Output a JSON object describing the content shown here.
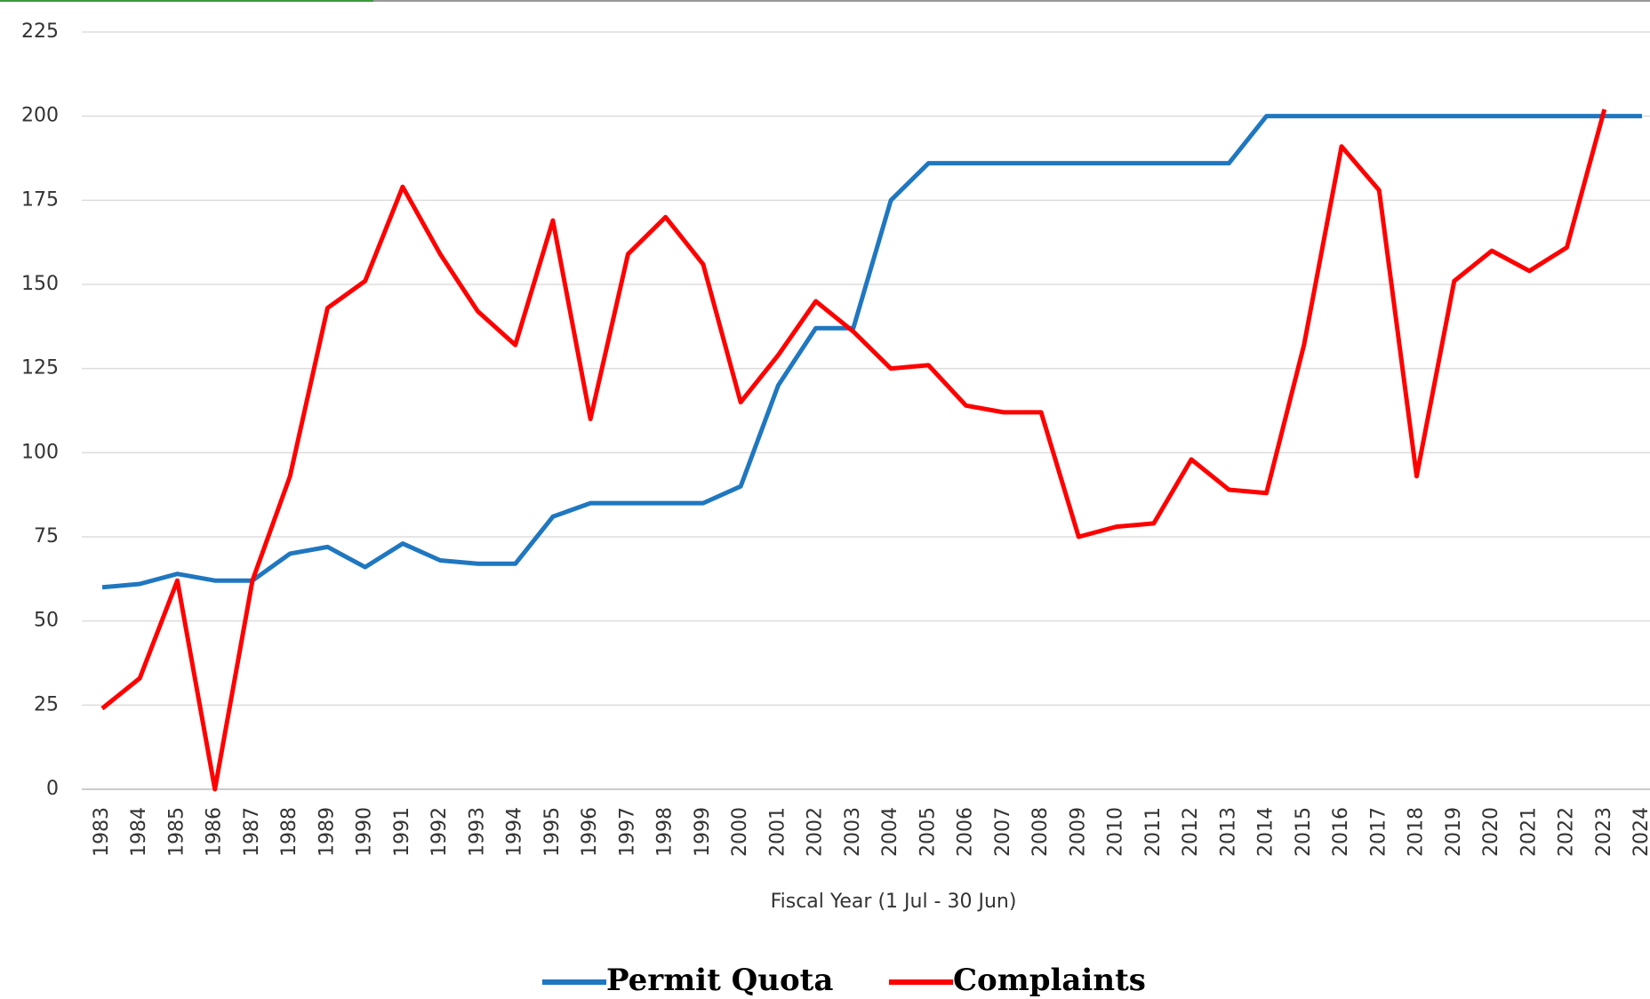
{
  "chart_data": {
    "type": "line",
    "x_label": "Fiscal Year (1 Jul - 30 Jun)",
    "categories": [
      "1983",
      "1984",
      "1985",
      "1986",
      "1987",
      "1988",
      "1989",
      "1990",
      "1991",
      "1992",
      "1993",
      "1994",
      "1995",
      "1996",
      "1997",
      "1998",
      "1999",
      "2000",
      "2001",
      "2002",
      "2003",
      "2004",
      "2005",
      "2006",
      "2007",
      "2008",
      "2009",
      "2010",
      "2011",
      "2012",
      "2013",
      "2014",
      "2015",
      "2016",
      "2017",
      "2018",
      "2019",
      "2020",
      "2021",
      "2022",
      "2023",
      "2024"
    ],
    "series": [
      {
        "name": "Permit Quota",
        "color": "#1f77c0",
        "values": [
          60,
          61,
          64,
          62,
          62,
          70,
          72,
          66,
          73,
          68,
          67,
          67,
          81,
          85,
          85,
          85,
          85,
          90,
          120,
          137,
          137,
          175,
          186,
          186,
          186,
          186,
          186,
          186,
          186,
          186,
          186,
          200,
          200,
          200,
          200,
          200,
          200,
          200,
          200,
          200,
          200,
          200
        ]
      },
      {
        "name": "Complaints",
        "color": "#ff0000",
        "values": [
          24,
          33,
          62,
          0,
          62,
          93,
          143,
          151,
          179,
          159,
          142,
          132,
          169,
          110,
          159,
          170,
          156,
          115,
          129,
          145,
          136,
          125,
          126,
          114,
          112,
          112,
          75,
          78,
          79,
          98,
          89,
          88,
          132,
          191,
          178,
          93,
          151,
          160,
          154,
          161,
          202,
          null
        ]
      }
    ],
    "ylim": [
      0,
      225
    ],
    "yticks": [
      0,
      25,
      50,
      75,
      100,
      125,
      150,
      175,
      200,
      225
    ],
    "grid": true
  }
}
